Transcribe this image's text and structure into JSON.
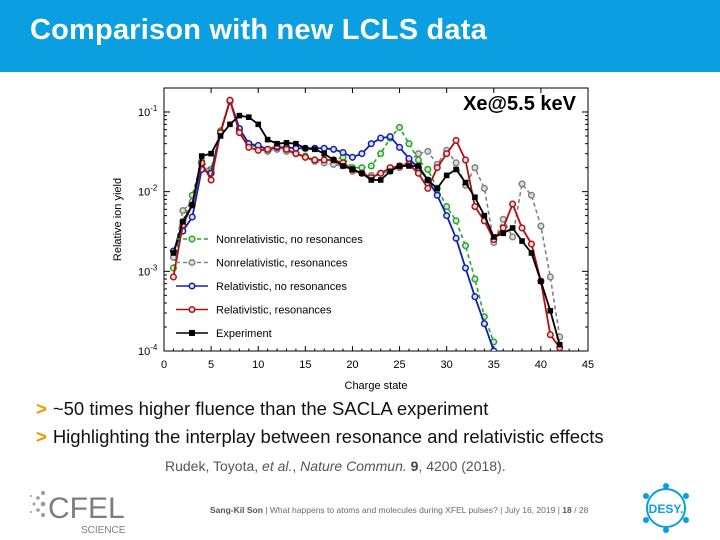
{
  "slide": {
    "title": "Comparison with new LCLS data",
    "bullets": [
      {
        "marker": ">",
        "text": "~50 times higher fluence than the SACLA experiment"
      },
      {
        "marker": ">",
        "text": "Highlighting the interplay between resonance and relativistic effects"
      }
    ],
    "citation": {
      "authors": "Rudek, Toyota, ",
      "etal": "et al.",
      "journal": "Nature Commun.",
      "volume": "9",
      "rest": ", 4200 (2018)."
    },
    "footer": {
      "presenter": "Sang-Kil Son",
      "sep1": "|",
      "talk": "What happens to atoms and molecules during XFEL pulses?",
      "sep2": "|",
      "date": "July 16, 2019",
      "sep3": "|",
      "page": "18",
      "total": "/ 28"
    },
    "logos": {
      "left_text": "CFEL",
      "left_sub": "SCIENCE",
      "right_text": "DESY."
    }
  },
  "colors": {
    "title_bar": "#0b9ee0",
    "bullet_marker": "#f29400",
    "nonrel_nores": "#22aa22",
    "nonrel_res": "#808080",
    "rel_nores": "#1020b0",
    "rel_res": "#b01010",
    "experiment": "#000000"
  },
  "chart_data": {
    "type": "line",
    "annotation": "Xe@5.5 keV",
    "xlabel": "Charge state",
    "ylabel": "Relative ion yield",
    "xlim": [
      0,
      45
    ],
    "ylim": [
      0.0001,
      0.2
    ],
    "yscale": "log",
    "xticks": [
      "0",
      "5",
      "10",
      "15",
      "20",
      "25",
      "30",
      "35",
      "40",
      "45"
    ],
    "yticks": [
      {
        "base": "10",
        "exp": "-1",
        "value": 0.1
      },
      {
        "base": "10",
        "exp": "-2",
        "value": 0.01
      },
      {
        "base": "10",
        "exp": "-3",
        "value": 0.001
      },
      {
        "base": "10",
        "exp": "-4",
        "value": 0.0001
      }
    ],
    "legend_position": "lower-left",
    "series": [
      {
        "name": "Nonrelativistic, no resonances",
        "style": "dashed",
        "marker": "circle",
        "x": [
          1,
          2,
          3,
          4,
          5,
          6,
          7,
          8,
          9,
          10,
          11,
          12,
          13,
          14,
          15,
          16,
          17,
          18,
          19,
          20,
          21,
          22,
          23,
          24,
          25,
          26,
          27,
          28,
          29,
          30,
          31,
          32,
          33,
          34,
          35
        ],
        "y": [
          0.0011,
          0.0042,
          0.009,
          0.024,
          0.019,
          0.058,
          0.14,
          0.06,
          0.04,
          0.035,
          0.033,
          0.036,
          0.034,
          0.03,
          0.028,
          0.025,
          0.025,
          0.025,
          0.027,
          0.02,
          0.02,
          0.021,
          0.03,
          0.047,
          0.064,
          0.04,
          0.025,
          0.019,
          0.011,
          0.0065,
          0.0043,
          0.0021,
          0.0008,
          0.00027,
          0.00013
        ]
      },
      {
        "name": "Nonrelativistic, resonances",
        "style": "dashed",
        "marker": "circle",
        "x": [
          1,
          2,
          3,
          4,
          5,
          6,
          7,
          8,
          9,
          10,
          11,
          12,
          13,
          14,
          15,
          16,
          17,
          18,
          19,
          20,
          21,
          22,
          23,
          24,
          25,
          26,
          27,
          28,
          29,
          30,
          31,
          32,
          33,
          34,
          35,
          36,
          37,
          38,
          39,
          40,
          41,
          42
        ],
        "y": [
          0.0015,
          0.0058,
          0.0075,
          0.022,
          0.018,
          0.055,
          0.135,
          0.058,
          0.038,
          0.034,
          0.032,
          0.034,
          0.032,
          0.03,
          0.027,
          0.024,
          0.023,
          0.022,
          0.021,
          0.018,
          0.017,
          0.016,
          0.017,
          0.018,
          0.02,
          0.024,
          0.03,
          0.032,
          0.022,
          0.033,
          0.023,
          0.012,
          0.02,
          0.011,
          0.0023,
          0.0045,
          0.0027,
          0.0125,
          0.009,
          0.0037,
          0.00085,
          0.00015
        ]
      },
      {
        "name": "Relativistic, no resonances",
        "style": "solid",
        "marker": "circle",
        "x": [
          1,
          2,
          3,
          4,
          5,
          6,
          7,
          8,
          9,
          10,
          11,
          12,
          13,
          14,
          15,
          16,
          17,
          18,
          19,
          20,
          21,
          22,
          23,
          24,
          25,
          26,
          27,
          28,
          29,
          30,
          31,
          32,
          33,
          34,
          35
        ],
        "y": [
          0.0018,
          0.0032,
          0.0048,
          0.019,
          0.017,
          0.055,
          0.14,
          0.062,
          0.04,
          0.038,
          0.034,
          0.036,
          0.036,
          0.035,
          0.035,
          0.035,
          0.035,
          0.034,
          0.031,
          0.027,
          0.03,
          0.04,
          0.047,
          0.049,
          0.036,
          0.026,
          0.02,
          0.014,
          0.009,
          0.005,
          0.0026,
          0.0011,
          0.00048,
          0.00022,
          0.0001
        ]
      },
      {
        "name": "Relativistic, resonances",
        "style": "solid",
        "marker": "circle",
        "x": [
          1,
          2,
          3,
          4,
          5,
          6,
          7,
          8,
          9,
          10,
          11,
          12,
          13,
          14,
          15,
          16,
          17,
          18,
          19,
          20,
          21,
          22,
          23,
          24,
          25,
          26,
          27,
          28,
          29,
          30,
          31,
          32,
          33,
          34,
          35,
          36,
          37,
          38,
          39,
          40,
          41,
          42
        ],
        "y": [
          0.00085,
          0.0038,
          0.0068,
          0.023,
          0.014,
          0.055,
          0.14,
          0.055,
          0.036,
          0.033,
          0.034,
          0.037,
          0.034,
          0.03,
          0.027,
          0.025,
          0.025,
          0.025,
          0.023,
          0.019,
          0.017,
          0.015,
          0.017,
          0.02,
          0.021,
          0.022,
          0.017,
          0.011,
          0.02,
          0.03,
          0.044,
          0.025,
          0.0065,
          0.0043,
          0.0025,
          0.0035,
          0.007,
          0.0035,
          0.0022,
          0.00075,
          0.00016,
          0.00011
        ]
      },
      {
        "name": "Experiment",
        "style": "solid",
        "marker": "square",
        "x": [
          1,
          2,
          3,
          4,
          5,
          6,
          7,
          8,
          9,
          10,
          11,
          12,
          13,
          14,
          15,
          16,
          17,
          18,
          19,
          20,
          21,
          22,
          23,
          24,
          25,
          26,
          27,
          28,
          29,
          30,
          31,
          32,
          33,
          34,
          35,
          36,
          37,
          38,
          39,
          40,
          41,
          42
        ],
        "y": [
          0.0017,
          0.0042,
          0.0068,
          0.028,
          0.03,
          0.05,
          0.07,
          0.09,
          0.086,
          0.07,
          0.045,
          0.04,
          0.041,
          0.04,
          0.035,
          0.034,
          0.03,
          0.025,
          0.021,
          0.019,
          0.017,
          0.014,
          0.014,
          0.018,
          0.021,
          0.021,
          0.021,
          0.014,
          0.011,
          0.016,
          0.019,
          0.013,
          0.0085,
          0.005,
          0.0027,
          0.003,
          0.0035,
          0.0024,
          0.0017,
          0.00075,
          0.00032,
          0.00012
        ]
      }
    ]
  }
}
